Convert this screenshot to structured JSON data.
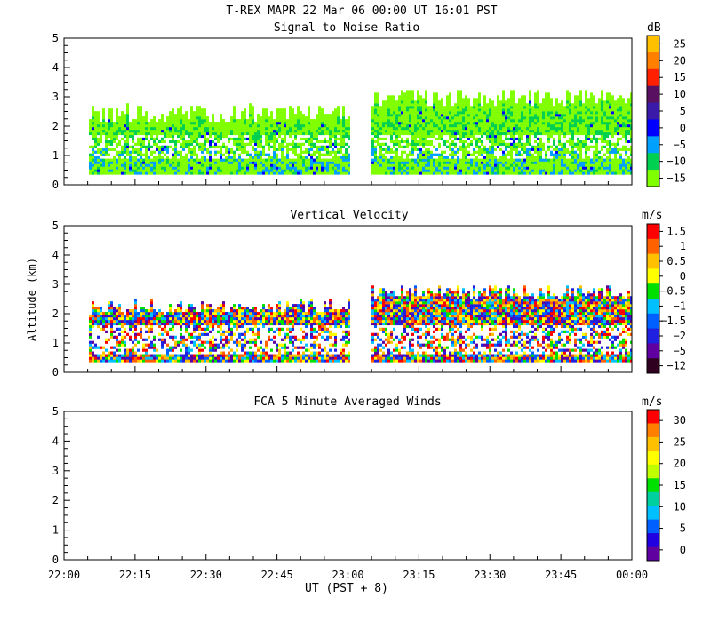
{
  "header": {
    "title": "T-REX   MAPR 22 Mar 06   00:00 UT   16:01   PST"
  },
  "chart_data": [
    {
      "id": "snr",
      "type": "heatmap",
      "title": "Signal to Noise Ratio",
      "ylabel": "",
      "units": "dB",
      "ylim": [
        0,
        5
      ],
      "yticks": [
        "0",
        "1",
        "2",
        "3",
        "4",
        "5"
      ],
      "colorbar": {
        "labels": [
          "25",
          "20",
          "15",
          "10",
          "5",
          "0",
          "−5",
          "−10",
          "−15"
        ],
        "colors": [
          "#ffc000",
          "#ff8000",
          "#ff2000",
          "#5a1060",
          "#3a1aa8",
          "#0000ff",
          "#00a0ff",
          "#00d050",
          "#80ff00"
        ]
      },
      "data_gap_ut": [
        "23:00",
        "23:05"
      ],
      "echo_top_km": [
        2.5,
        3.2
      ]
    },
    {
      "id": "vv",
      "type": "heatmap",
      "title": "Vertical Velocity",
      "ylabel": "Altitude (km)",
      "units": "m/s",
      "ylim": [
        0,
        5
      ],
      "yticks": [
        "0",
        "1",
        "2",
        "3",
        "4",
        "5"
      ],
      "colorbar": {
        "labels": [
          "1.5",
          "1",
          "0.5",
          "0",
          "−0.5",
          "−1",
          "−1.5",
          "−2",
          "−5",
          "−12"
        ],
        "colors": [
          "#ff0000",
          "#ff6000",
          "#ffc000",
          "#ffff00",
          "#00e000",
          "#00c0ff",
          "#0060ff",
          "#2020e0",
          "#6000a0",
          "#300020"
        ]
      },
      "data_gap_ut": [
        "23:00",
        "23:05"
      ],
      "echo_top_km": [
        2.2,
        3.0
      ]
    },
    {
      "id": "fca",
      "type": "heatmap",
      "title": "FCA 5 Minute Averaged Winds",
      "ylabel": "",
      "units": "m/s",
      "ylim": [
        0,
        5
      ],
      "yticks": [
        "0",
        "1",
        "2",
        "3",
        "4",
        "5"
      ],
      "colorbar": {
        "labels": [
          "30",
          "25",
          "20",
          "15",
          "10",
          "5",
          "0"
        ],
        "colors": [
          "#ff0000",
          "#ff8000",
          "#ffc000",
          "#ffff00",
          "#c0ff00",
          "#00e000",
          "#00d0a0",
          "#00c0ff",
          "#0060ff",
          "#2000e0",
          "#6000a0"
        ]
      },
      "values": []
    }
  ],
  "xaxis": {
    "label": "UT  (PST + 8)",
    "ticks": [
      "22:00",
      "22:15",
      "22:30",
      "22:45",
      "23:00",
      "23:15",
      "23:30",
      "23:45",
      "00:00"
    ]
  }
}
